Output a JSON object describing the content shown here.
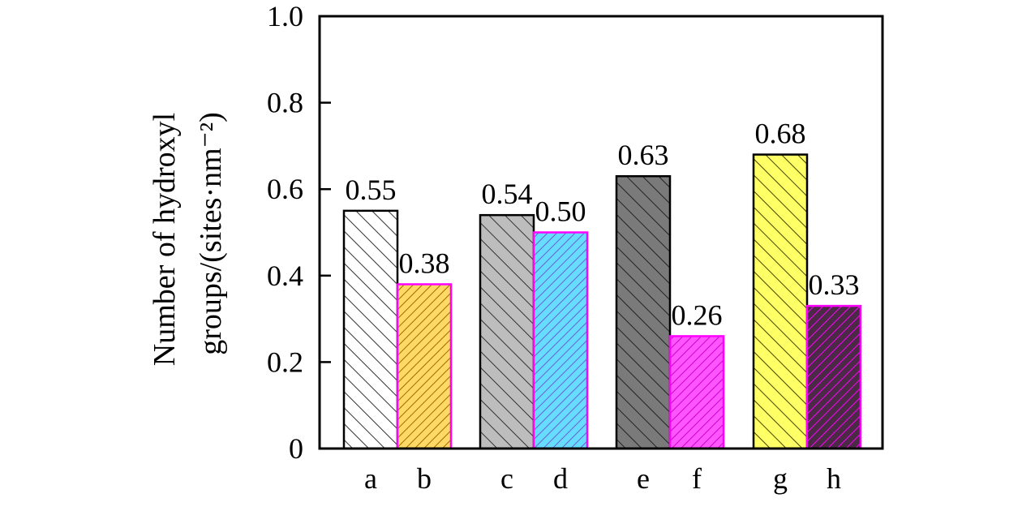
{
  "chart_data": {
    "type": "bar",
    "title": "",
    "xlabel": "",
    "ylabel_line1": "Number of hydroxyl",
    "ylabel_line2": "groups/(sites·nm⁻²)",
    "ylim": [
      0,
      1.0
    ],
    "yticks": [
      "0",
      "0.2",
      "0.4",
      "0.6",
      "0.8",
      "1.0"
    ],
    "ytick_values": [
      0,
      0.2,
      0.4,
      0.6,
      0.8,
      1.0
    ],
    "grid": false,
    "legend": "none",
    "categories": [
      "a",
      "b",
      "c",
      "d",
      "e",
      "f",
      "g",
      "h"
    ],
    "values": [
      0.55,
      0.38,
      0.54,
      0.5,
      0.63,
      0.26,
      0.68,
      0.33
    ],
    "value_labels": [
      "0.55",
      "0.38",
      "0.54",
      "0.50",
      "0.63",
      "0.26",
      "0.68",
      "0.33"
    ],
    "groups": [
      [
        "a",
        "b"
      ],
      [
        "c",
        "d"
      ],
      [
        "e",
        "f"
      ],
      [
        "g",
        "h"
      ]
    ],
    "bar_fills": [
      "#ffffff",
      "#ffd966",
      "#bdbdbd",
      "#66ddff",
      "#7a7a7a",
      "#ff55ff",
      "#ffff66",
      "#4a2a44"
    ],
    "bar_strokes": [
      "#000000",
      "#ff00ff",
      "#000000",
      "#ff00ff",
      "#000000",
      "#ff00ff",
      "#000000",
      "#ff00ff"
    ],
    "hatch_colors": [
      "#333333",
      "#a06a00",
      "#333333",
      "#6a5fd0",
      "#222222",
      "#cc00cc",
      "#444400",
      "#ff00ff"
    ]
  }
}
